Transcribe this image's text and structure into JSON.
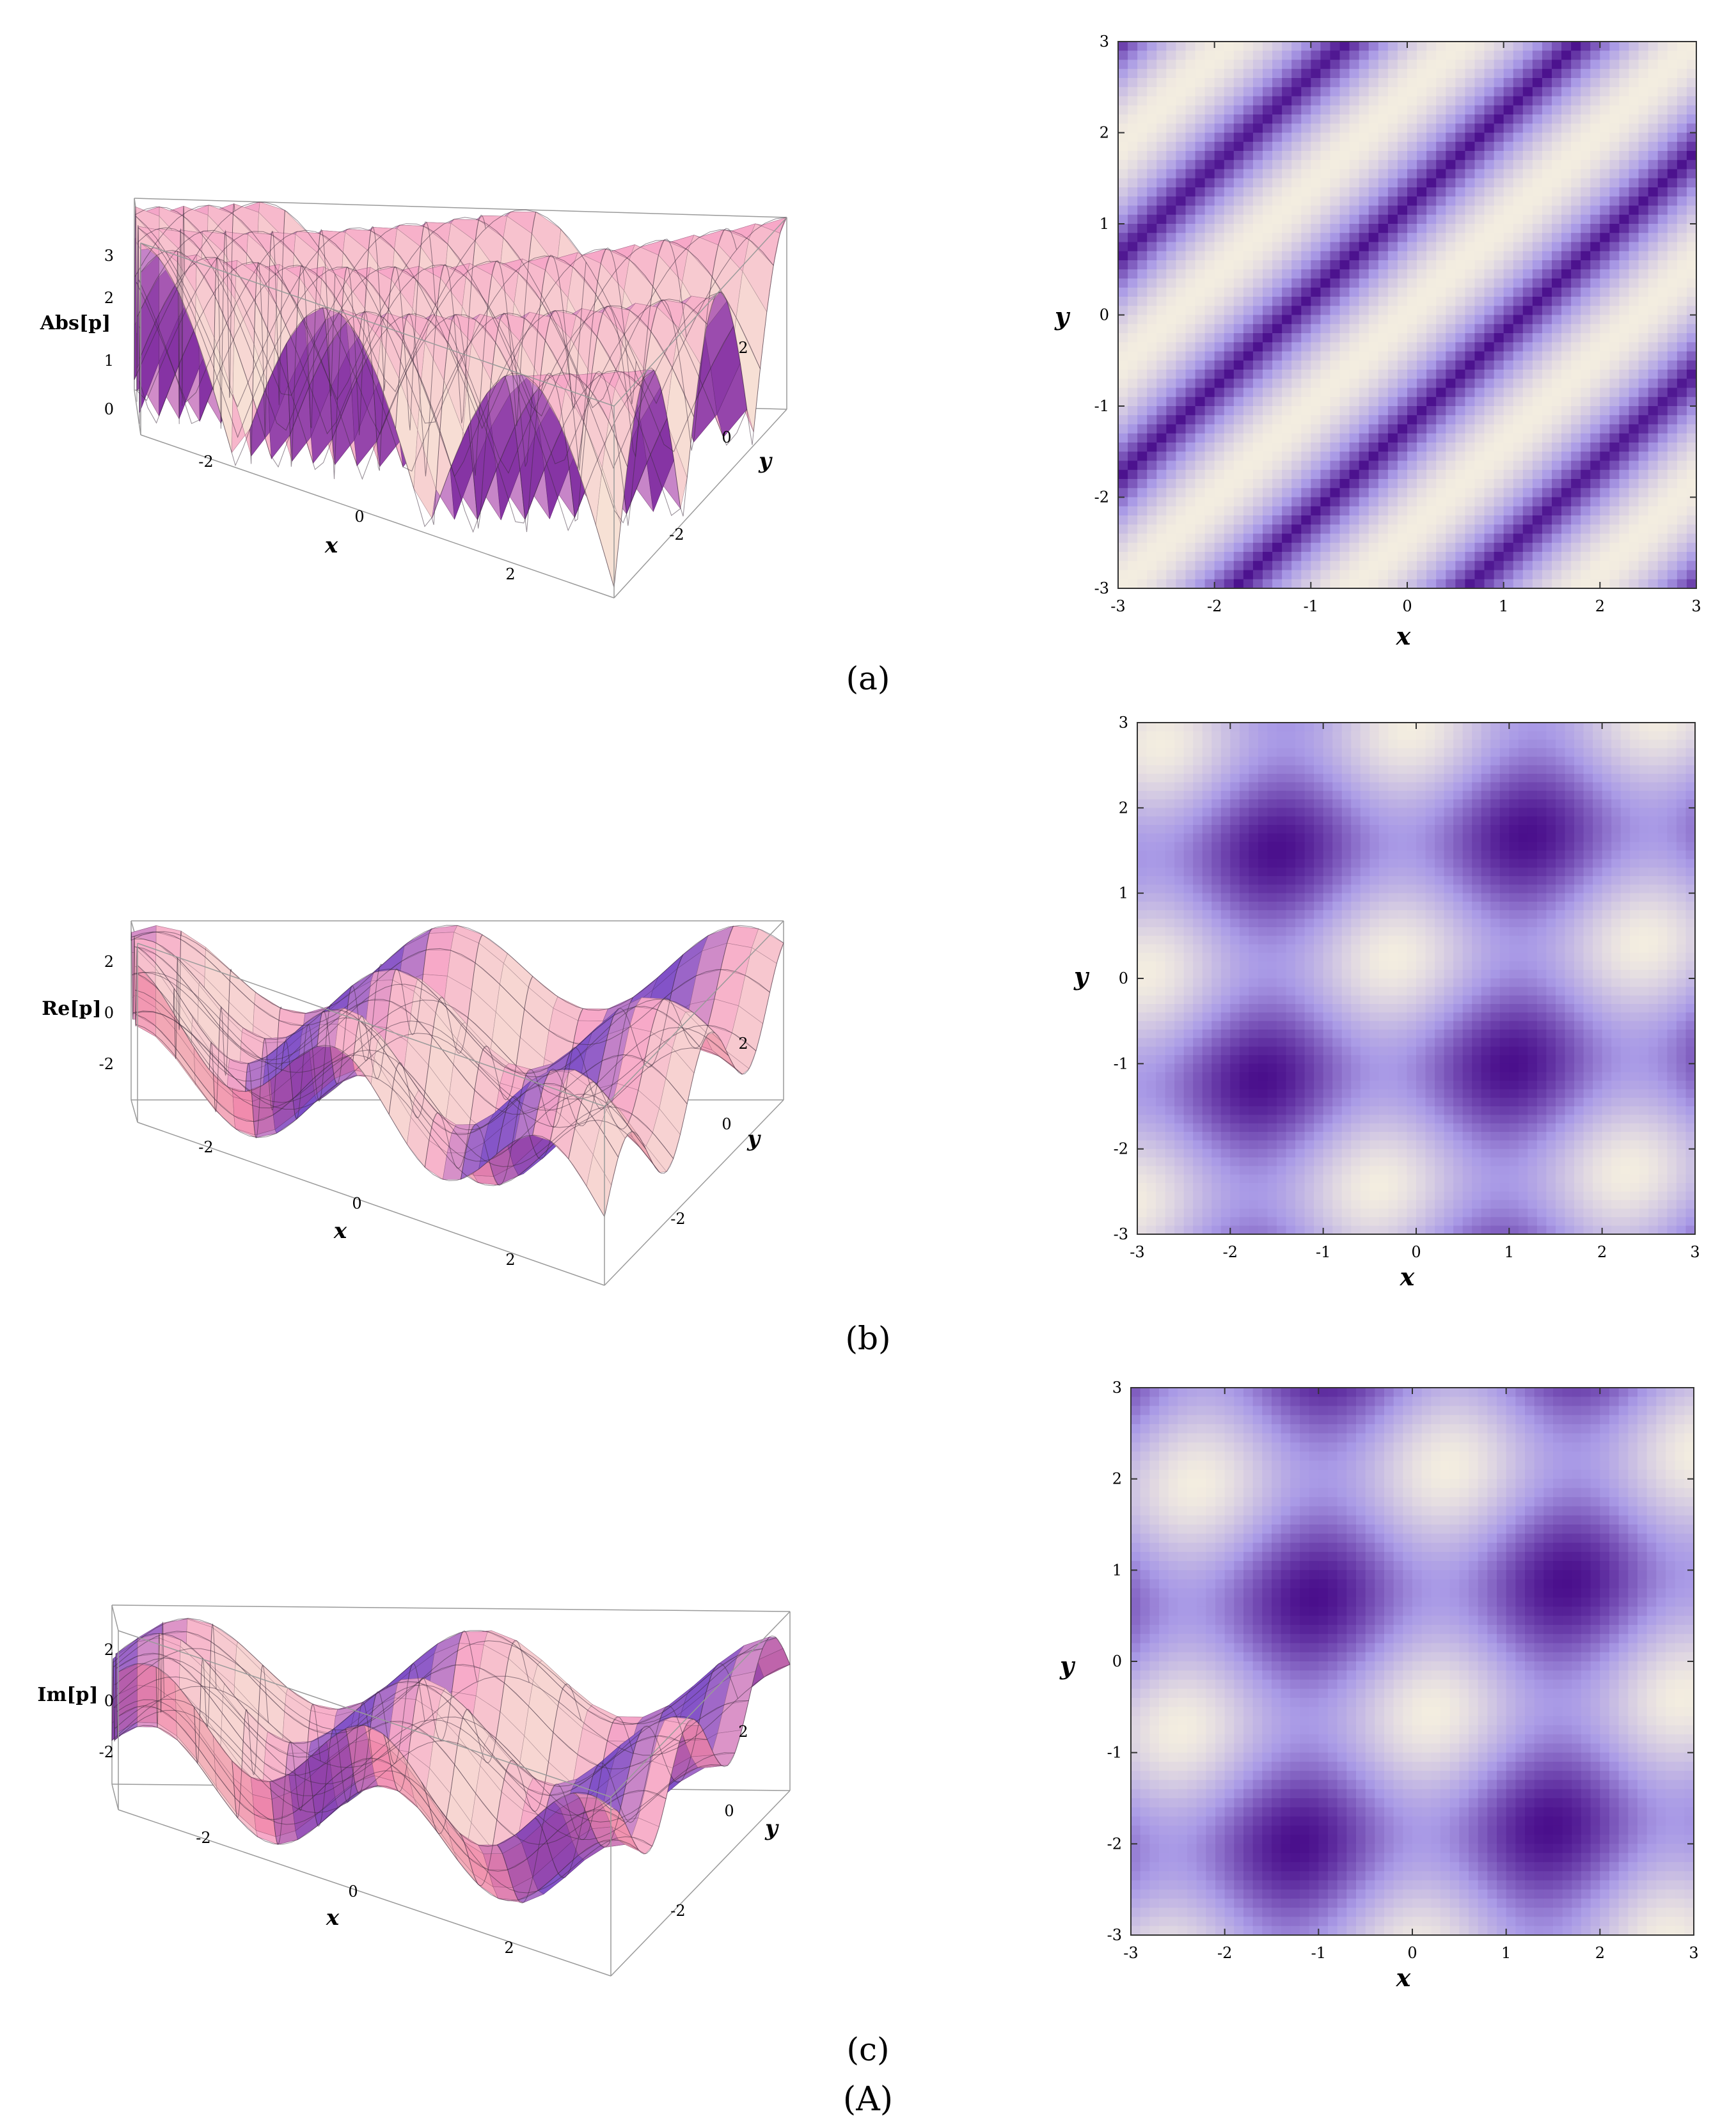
{
  "figure": {
    "caption": "(A)",
    "colors": {
      "surface_pink": "#f7a8c8",
      "surface_red": "#e0305a",
      "surface_blue": "#3c1fc8",
      "surface_cream": "#f7efd8",
      "density_dark": "#4a0f8c",
      "density_mid": "#a99ae6",
      "density_light": "#f3ede0"
    },
    "rows": [
      {
        "label": "(a)",
        "surface": {
          "zlabel": "Abs[p]",
          "xlabel": "x",
          "ylabel": "y",
          "zticks": [
            "3",
            "2",
            "1",
            "0"
          ],
          "xticks": [
            "-2",
            "0",
            "2"
          ],
          "yticks": [
            "2",
            "0",
            "-2"
          ]
        },
        "density": {
          "xlabel": "x",
          "ylabel": "y",
          "xticks": [
            "-3",
            "-2",
            "-1",
            "0",
            "1",
            "2",
            "3"
          ],
          "yticks": [
            "3",
            "2",
            "1",
            "0",
            "-1",
            "-2",
            "-3"
          ]
        }
      },
      {
        "label": "(b)",
        "surface": {
          "zlabel": "Re[p]",
          "xlabel": "x",
          "ylabel": "y",
          "zticks": [
            "2",
            "0",
            "-2"
          ],
          "xticks": [
            "-2",
            "0",
            "2"
          ],
          "yticks": [
            "2",
            "0",
            "-2"
          ]
        },
        "density": {
          "xlabel": "x",
          "ylabel": "y",
          "xticks": [
            "-3",
            "-2",
            "-1",
            "0",
            "1",
            "2",
            "3"
          ],
          "yticks": [
            "3",
            "2",
            "1",
            "0",
            "-1",
            "-2",
            "-3"
          ]
        }
      },
      {
        "label": "(c)",
        "surface": {
          "zlabel": "Im[p]",
          "xlabel": "x",
          "ylabel": "y",
          "zticks": [
            "2",
            "0",
            "-2"
          ],
          "xticks": [
            "-2",
            "0",
            "2"
          ],
          "yticks": [
            "2",
            "0",
            "-2"
          ]
        },
        "density": {
          "xlabel": "x",
          "ylabel": "y",
          "xticks": [
            "-3",
            "-2",
            "-1",
            "0",
            "1",
            "2",
            "3"
          ],
          "yticks": [
            "3",
            "2",
            "1",
            "0",
            "-1",
            "-2",
            "-3"
          ]
        }
      }
    ]
  },
  "chart_data": [
    {
      "type": "surface",
      "panel": "(a) left",
      "zlabel": "Abs[p]",
      "xlabel": "x",
      "ylabel": "y",
      "xlim": [
        -3,
        3
      ],
      "ylim": [
        -3,
        3
      ],
      "zlim": [
        0,
        3
      ],
      "function": "abs",
      "pattern": "periodic diagonal ridges"
    },
    {
      "type": "heatmap",
      "panel": "(a) right",
      "xlabel": "x",
      "ylabel": "y",
      "xlim": [
        -3,
        3
      ],
      "ylim": [
        -3,
        3
      ],
      "function": "abs",
      "pattern": "diagonal stripes"
    },
    {
      "type": "surface",
      "panel": "(b) left",
      "zlabel": "Re[p]",
      "xlabel": "x",
      "ylabel": "y",
      "xlim": [
        -3,
        3
      ],
      "ylim": [
        -3,
        3
      ],
      "zlim": [
        -2.5,
        2.5
      ],
      "function": "re",
      "pattern": "periodic waves"
    },
    {
      "type": "heatmap",
      "panel": "(b) right",
      "xlabel": "x",
      "ylabel": "y",
      "xlim": [
        -3,
        3
      ],
      "ylim": [
        -3,
        3
      ],
      "function": "re",
      "pattern": "periodic blobs"
    },
    {
      "type": "surface",
      "panel": "(c) left",
      "zlabel": "Im[p]",
      "xlabel": "x",
      "ylabel": "y",
      "xlim": [
        -3,
        3
      ],
      "ylim": [
        -3,
        3
      ],
      "zlim": [
        -2.5,
        2.5
      ],
      "function": "im",
      "pattern": "periodic waves"
    },
    {
      "type": "heatmap",
      "panel": "(c) right",
      "xlabel": "x",
      "ylabel": "y",
      "xlim": [
        -3,
        3
      ],
      "ylim": [
        -3,
        3
      ],
      "function": "im",
      "pattern": "periodic blobs"
    }
  ]
}
